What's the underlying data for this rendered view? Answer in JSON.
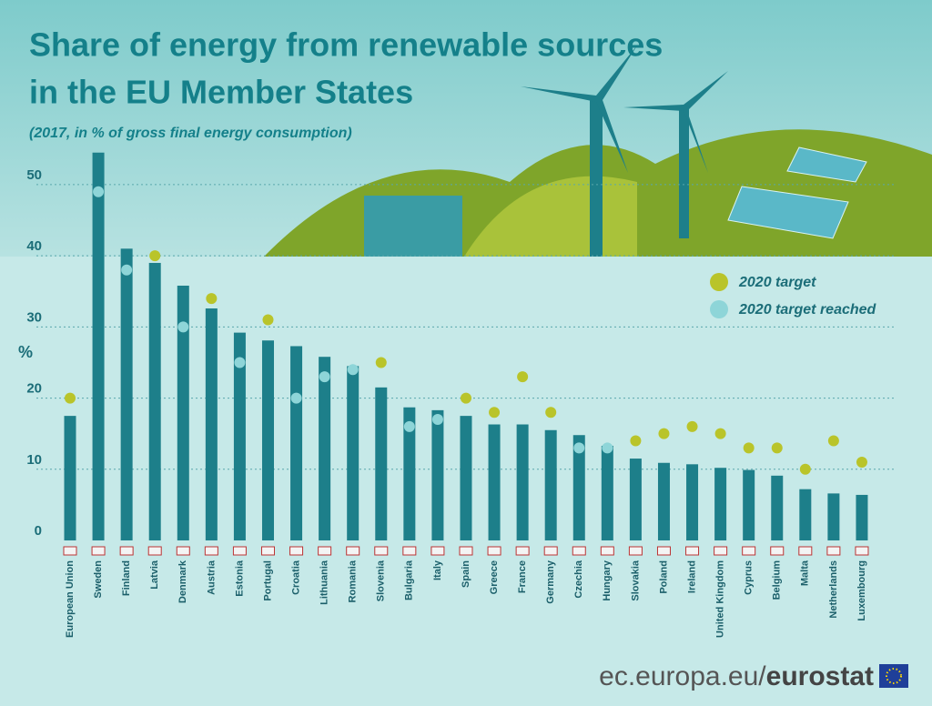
{
  "chart_data": {
    "type": "bar",
    "title_lines": [
      "Share of energy from renewable sources",
      "in the EU Member States"
    ],
    "subtitle": "(2017, in % of gross final energy consumption)",
    "y_label": "%",
    "categories": [
      "European Union",
      "Sweden",
      "Finland",
      "Latvia",
      "Denmark",
      "Austria",
      "Estonia",
      "Portugal",
      "Croatia",
      "Lithuania",
      "Romania",
      "Slovenia",
      "Bulgaria",
      "Italy",
      "Spain",
      "Greece",
      "France",
      "Germany",
      "Czechia",
      "Hungary",
      "Slovakia",
      "Poland",
      "Ireland",
      "United Kingdom",
      "Cyprus",
      "Belgium",
      "Malta",
      "Netherlands",
      "Luxembourg"
    ],
    "values": [
      17.5,
      54.5,
      41.0,
      39.0,
      35.8,
      32.6,
      29.2,
      28.1,
      27.3,
      25.8,
      24.5,
      21.5,
      18.7,
      18.3,
      17.5,
      16.3,
      16.3,
      15.5,
      14.8,
      13.3,
      11.5,
      10.9,
      10.7,
      10.2,
      9.9,
      9.1,
      7.2,
      6.6,
      6.4
    ],
    "color": "#1d7f8a",
    "targets": {
      "name": "2020 target",
      "color": "#b9c42a",
      "values": [
        20,
        49,
        38,
        40,
        30,
        34,
        25,
        31,
        20,
        23,
        24,
        25,
        16,
        17,
        20,
        18,
        23,
        18,
        13,
        13,
        14,
        15,
        16,
        15,
        13,
        13,
        10,
        14,
        11
      ]
    },
    "reached": {
      "name": "2020 target reached",
      "color": "#8ed5d8"
    },
    "ylim": [
      0,
      56
    ],
    "yticks": [
      0,
      10,
      20,
      30,
      40,
      50
    ],
    "grid": true,
    "footer": {
      "site": "ec.europa.eu/",
      "brand": "eurostat"
    }
  }
}
